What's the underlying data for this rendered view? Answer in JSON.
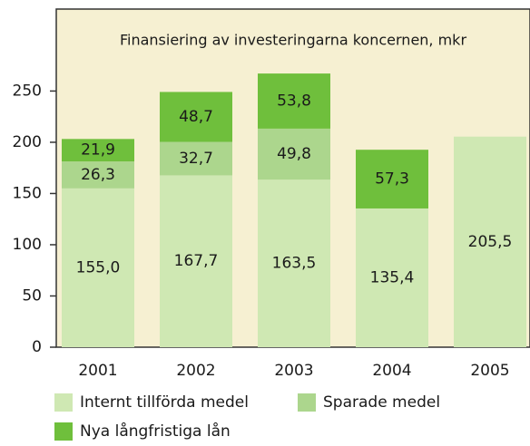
{
  "chart_data": {
    "type": "stacked_bar",
    "title": "Finansiering av investeringarna koncernen, mkr",
    "categories": [
      "2001",
      "2002",
      "2003",
      "2004",
      "2005"
    ],
    "series": [
      {
        "name": "Internt tillförda medel",
        "color": "#cfe8b3",
        "values": [
          155.0,
          167.7,
          163.5,
          135.4,
          205.5
        ],
        "value_labels": [
          "155,0",
          "167,7",
          "163,5",
          "135,4",
          "205,5"
        ]
      },
      {
        "name": "Sparade medel",
        "color": "#acd68d",
        "values": [
          26.3,
          32.7,
          49.8,
          null,
          null
        ],
        "value_labels": [
          "26,3",
          "32,7",
          "49,8",
          null,
          null
        ]
      },
      {
        "name": "Nya långfristiga lån",
        "color": "#6fbf3c",
        "values": [
          21.9,
          48.7,
          53.8,
          57.3,
          null
        ],
        "value_labels": [
          "21,9",
          "48,7",
          "53,8",
          "57,3",
          null
        ]
      }
    ],
    "ylim": [
      0,
      330
    ],
    "yticks": [
      0,
      50,
      100,
      150,
      200,
      250
    ]
  }
}
